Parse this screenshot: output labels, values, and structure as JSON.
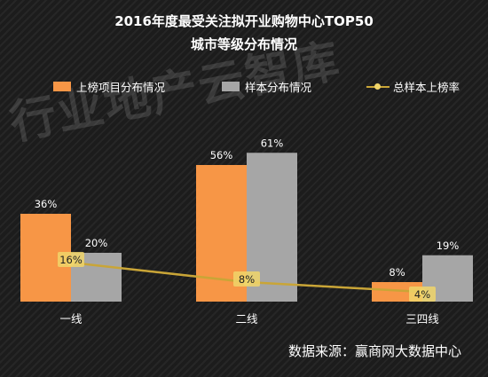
{
  "header": {
    "title_line1": "2016年度最受关注拟开业购物中心TOP50",
    "title_line2": "城市等级分布情况"
  },
  "watermark": "行业地产云智库",
  "source": "数据来源：赢商网大数据中心",
  "colors": {
    "series1": "#f79646",
    "series2": "#a6a6a6",
    "line": "#c9a537",
    "line_marker": "#f0d56a",
    "text": "#ffffff"
  },
  "chart_data": {
    "type": "bar",
    "categories": [
      "一线",
      "二线",
      "三四线"
    ],
    "series": [
      {
        "name": "上榜项目分布情况",
        "type": "bar",
        "values": [
          36,
          56,
          8
        ],
        "labels": [
          "36%",
          "56%",
          "8%"
        ]
      },
      {
        "name": "样本分布情况",
        "type": "bar",
        "values": [
          20,
          61,
          19
        ],
        "labels": [
          "20%",
          "61%",
          "19%"
        ]
      },
      {
        "name": "总样本上榜率",
        "type": "line",
        "values": [
          16,
          8,
          4
        ],
        "labels": [
          "16%",
          "8%",
          "4%"
        ]
      }
    ],
    "ylim": [
      0,
      70
    ],
    "grid": false,
    "legend": "top"
  }
}
